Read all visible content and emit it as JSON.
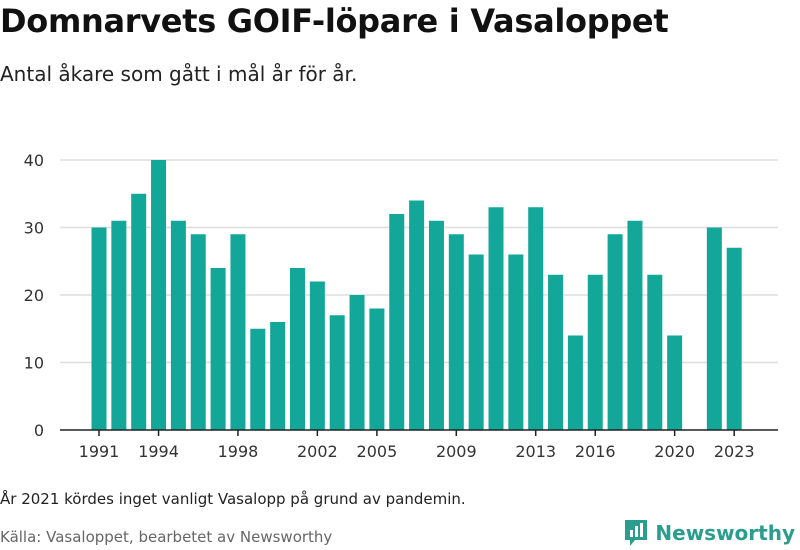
{
  "title": "Domnarvets GOIF-löpare i Vasaloppet",
  "subtitle": "Antal åkare som gått i mål år för år.",
  "note": "År 2021 kördes inget vanligt Vasalopp på grund av pandemin.",
  "source": "Källa: Vasaloppet, bearbetet av Newsworthy",
  "brand": {
    "name": "Newsworthy",
    "icon": "newsworthy-logo-icon"
  },
  "colors": {
    "bar": "#13a79a",
    "grid": "#dddddd",
    "axis": "#222222",
    "brand": "#2a9d8f"
  },
  "chart_data": {
    "type": "bar",
    "title": "Domnarvets GOIF-löpare i Vasaloppet",
    "subtitle": "Antal åkare som gått i mål år för år.",
    "xlabel": "",
    "ylabel": "",
    "ylim": [
      0,
      40
    ],
    "yticks": [
      0,
      10,
      20,
      30,
      40
    ],
    "xticks": [
      1991,
      1994,
      1998,
      2002,
      2005,
      2009,
      2013,
      2016,
      2020,
      2023
    ],
    "grid": true,
    "categories": [
      1991,
      1992,
      1993,
      1994,
      1995,
      1996,
      1997,
      1998,
      1999,
      2000,
      2001,
      2002,
      2003,
      2004,
      2005,
      2006,
      2007,
      2008,
      2009,
      2010,
      2011,
      2012,
      2013,
      2014,
      2015,
      2016,
      2017,
      2018,
      2019,
      2020,
      2021,
      2022,
      2023
    ],
    "values": [
      30,
      31,
      35,
      40,
      31,
      29,
      24,
      29,
      15,
      16,
      24,
      22,
      17,
      20,
      18,
      32,
      34,
      31,
      29,
      26,
      33,
      26,
      33,
      23,
      14,
      23,
      29,
      31,
      23,
      14,
      null,
      30,
      27
    ]
  }
}
